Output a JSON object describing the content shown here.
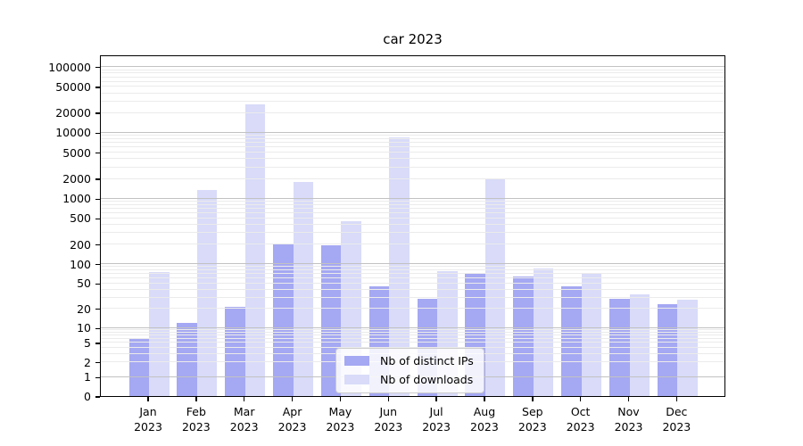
{
  "figure": {
    "title": "car 2023",
    "background": "#ffffff",
    "colors": {
      "distinct_ips": "#a5a8f2",
      "downloads": "#d9dbf9",
      "grid_minor": "#ebebeb",
      "grid_major": "#c2c2c2",
      "axis": "#000000"
    }
  },
  "legend": {
    "entries": [
      {
        "label": "Nb of distinct IPs",
        "series": "distinct_ips"
      },
      {
        "label": "Nb of downloads",
        "series": "downloads"
      }
    ],
    "position": "lower center inside"
  },
  "chart_data": {
    "type": "bar",
    "title": "car 2023",
    "categories": [
      "Jan 2023",
      "Feb 2023",
      "Mar 2023",
      "Apr 2023",
      "May 2023",
      "Jun 2023",
      "Jul 2023",
      "Aug 2023",
      "Sep 2023",
      "Oct 2023",
      "Nov 2023",
      "Dec 2023"
    ],
    "series": [
      {
        "name": "Nb of distinct IPs",
        "values": [
          6,
          12,
          21,
          195,
          190,
          44,
          28,
          70,
          63,
          45,
          28,
          23
        ]
      },
      {
        "name": "Nb of downloads",
        "values": [
          74,
          1350,
          27000,
          1750,
          440,
          8500,
          76,
          1950,
          84,
          69,
          33,
          27
        ]
      }
    ],
    "xlabel": "",
    "ylabel": "",
    "yscale": "symlog",
    "ylim": [
      0,
      150000
    ],
    "yticks": [
      0,
      1,
      2,
      5,
      10,
      20,
      50,
      100,
      200,
      500,
      1000,
      2000,
      5000,
      10000,
      20000,
      50000,
      100000
    ],
    "grid": "horizontal major+minor, drawn over bars",
    "legend_position": "lower center"
  }
}
